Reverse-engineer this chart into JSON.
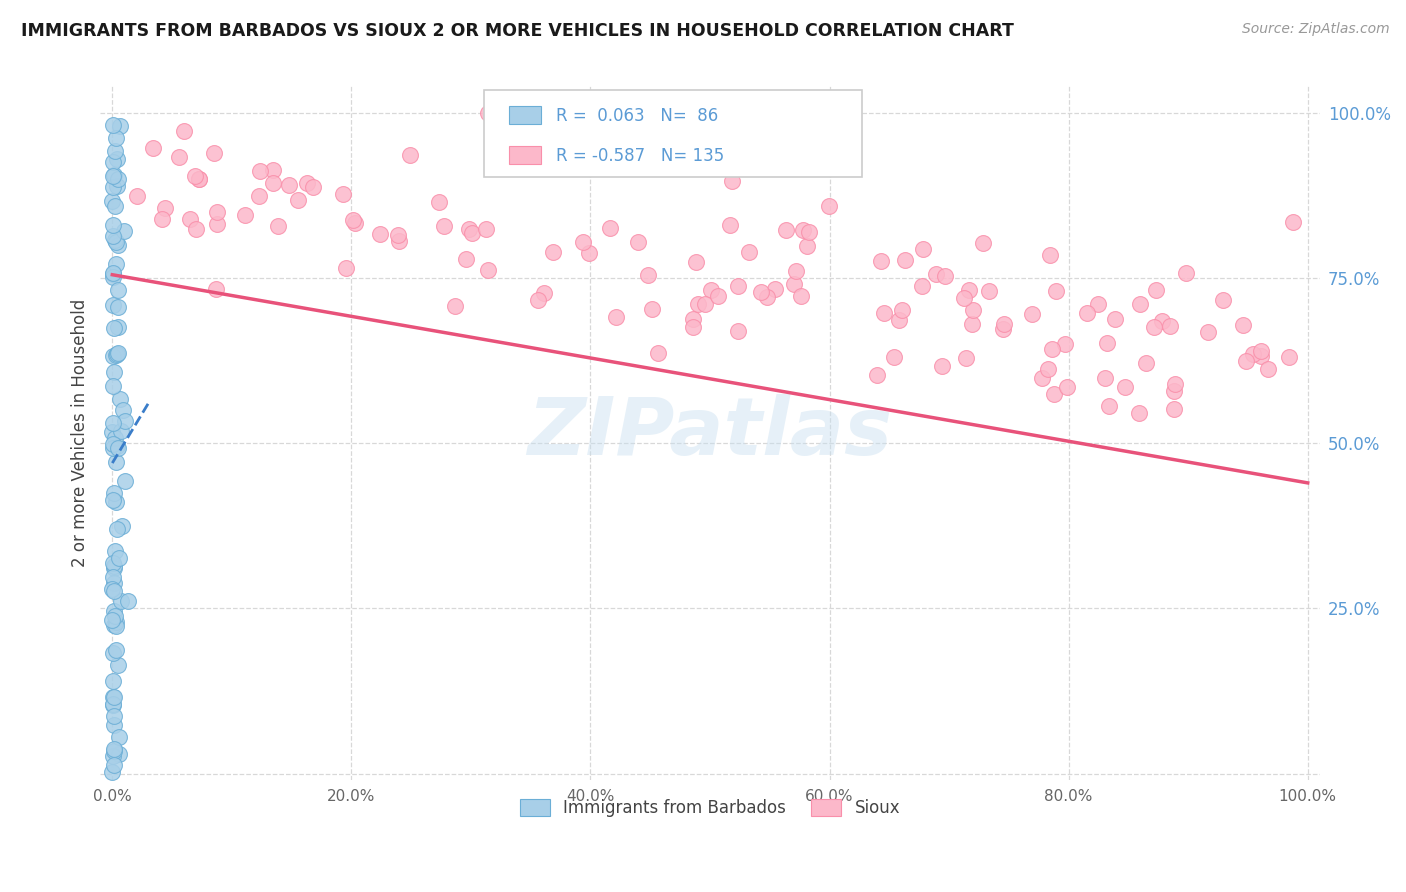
{
  "title": "IMMIGRANTS FROM BARBADOS VS SIOUX 2 OR MORE VEHICLES IN HOUSEHOLD CORRELATION CHART",
  "source_text": "Source: ZipAtlas.com",
  "ylabel": "2 or more Vehicles in Household",
  "legend_labels": [
    "Immigrants from Barbados",
    "Sioux"
  ],
  "R_blue": 0.063,
  "N_blue": 86,
  "R_pink": -0.587,
  "N_pink": 135,
  "blue_color": "#a8cfe8",
  "blue_edge_color": "#6baed6",
  "pink_color": "#fcb8ca",
  "pink_edge_color": "#f98faa",
  "blue_line_color": "#3a7dc9",
  "pink_line_color": "#e8527a",
  "watermark": "ZIPatlas",
  "background_color": "#ffffff",
  "grid_color": "#d8d8d8",
  "grid_style": "--"
}
